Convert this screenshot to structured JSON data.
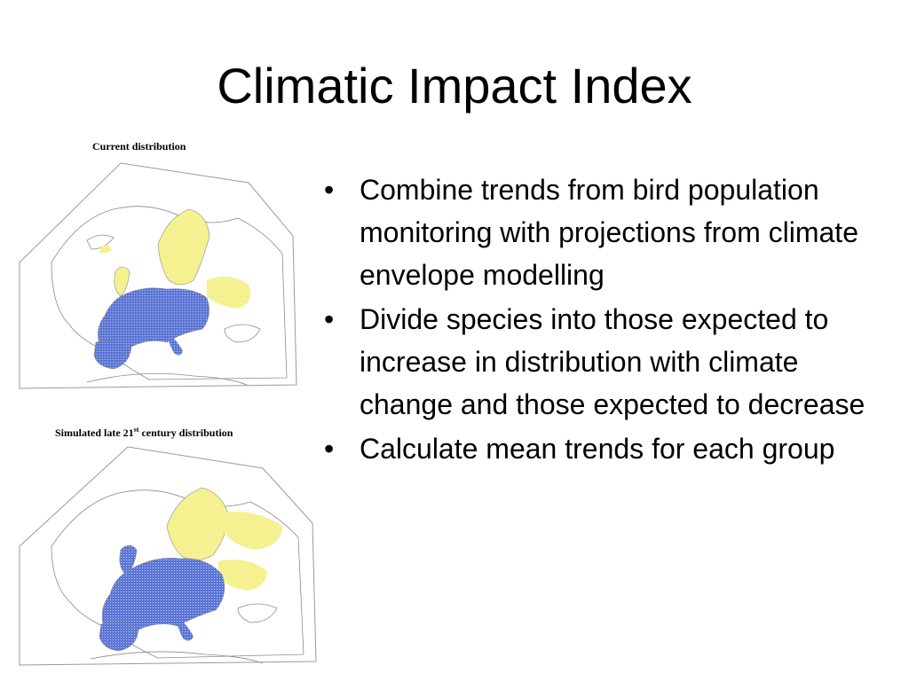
{
  "slide": {
    "title": "Climatic Impact Index"
  },
  "maps": {
    "top_caption": "Current distribution",
    "bottom_caption_prefix": "Simulated late 21",
    "bottom_caption_sup": "st",
    "bottom_caption_suffix": " century distribution",
    "colors": {
      "native": "#4a63c8",
      "projected_gain": "#f2ee7a",
      "land_outline": "#8a8a8a"
    }
  },
  "bullets": [
    "Combine trends from bird population monitoring with projections from climate envelope modelling",
    "Divide species into those expected to increase in distribution with climate change and those expected to decrease",
    "Calculate mean trends for each group"
  ],
  "icons": {
    "bullet": "•"
  }
}
